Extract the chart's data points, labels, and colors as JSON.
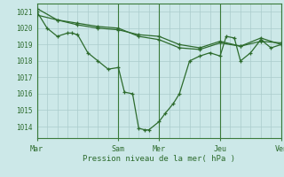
{
  "xlabel": "Pression niveau de la mer( hPa )",
  "bg_color": "#cce8e8",
  "grid_color": "#aacccc",
  "line_color": "#2d6b2d",
  "ylim": [
    1013.3,
    1021.5
  ],
  "yticks": [
    1014,
    1015,
    1016,
    1017,
    1018,
    1019,
    1020,
    1021
  ],
  "day_labels": [
    "Mar",
    "Sam",
    "Mer",
    "Jeu",
    "Ven"
  ],
  "day_positions": [
    0,
    4,
    6,
    9,
    12
  ],
  "series0_x": [
    0.0,
    0.5,
    1.0,
    1.5,
    1.7,
    2.0,
    2.5,
    3.0,
    3.5,
    4.0,
    4.3,
    4.7,
    5.0,
    5.3,
    5.5,
    6.0,
    6.3,
    6.7,
    7.0,
    7.5,
    8.0,
    8.5,
    9.0,
    9.3,
    9.7,
    10.0,
    10.5,
    11.0,
    11.5,
    12.0
  ],
  "series0_y": [
    1021.0,
    1020.0,
    1019.5,
    1019.7,
    1019.7,
    1019.6,
    1018.5,
    1018.0,
    1017.5,
    1017.6,
    1016.1,
    1016.0,
    1013.9,
    1013.8,
    1013.8,
    1014.3,
    1014.8,
    1015.4,
    1016.0,
    1018.0,
    1018.3,
    1018.5,
    1018.3,
    1019.5,
    1019.4,
    1018.0,
    1018.5,
    1019.3,
    1018.8,
    1019.0
  ],
  "series1_x": [
    0.0,
    1.0,
    2.0,
    3.0,
    4.0,
    5.0,
    6.0,
    7.0,
    8.0,
    9.0,
    10.0,
    11.0,
    12.0
  ],
  "series1_y": [
    1020.8,
    1020.5,
    1020.3,
    1020.1,
    1020.0,
    1019.5,
    1019.3,
    1018.8,
    1018.7,
    1019.1,
    1018.9,
    1019.2,
    1019.1
  ],
  "series2_x": [
    0.0,
    1.0,
    2.0,
    3.0,
    4.0,
    5.0,
    6.0,
    7.0,
    8.0,
    9.0,
    10.0,
    11.0,
    12.0
  ],
  "series2_y": [
    1021.2,
    1020.5,
    1020.2,
    1020.0,
    1019.9,
    1019.6,
    1019.5,
    1019.0,
    1018.8,
    1019.2,
    1018.9,
    1019.4,
    1019.0
  ]
}
